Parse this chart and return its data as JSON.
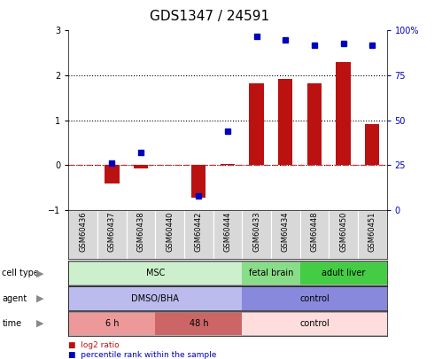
{
  "title": "GDS1347 / 24591",
  "samples": [
    "GSM60436",
    "GSM60437",
    "GSM60438",
    "GSM60440",
    "GSM60442",
    "GSM60444",
    "GSM60433",
    "GSM60434",
    "GSM60448",
    "GSM60450",
    "GSM60451"
  ],
  "log2_ratio": [
    0.0,
    -0.4,
    -0.07,
    0.0,
    -0.72,
    0.02,
    1.82,
    1.93,
    1.82,
    2.3,
    0.92
  ],
  "percentile_rank_pct": [
    null,
    26,
    32,
    null,
    8,
    44,
    97,
    95,
    92,
    93,
    92
  ],
  "ylim_left": [
    -1,
    3
  ],
  "ylim_right": [
    0,
    100
  ],
  "bar_color": "#bb1111",
  "dot_color": "#0000bb",
  "zero_line_color": "#cc3333",
  "cell_type_groups": [
    {
      "label": "MSC",
      "start": 0,
      "end": 5,
      "color": "#ccf0cc"
    },
    {
      "label": "fetal brain",
      "start": 6,
      "end": 7,
      "color": "#88dd88"
    },
    {
      "label": "adult liver",
      "start": 8,
      "end": 10,
      "color": "#44cc44"
    }
  ],
  "agent_groups": [
    {
      "label": "DMSO/BHA",
      "start": 0,
      "end": 5,
      "color": "#bbbbee"
    },
    {
      "label": "control",
      "start": 6,
      "end": 10,
      "color": "#8888dd"
    }
  ],
  "time_groups": [
    {
      "label": "6 h",
      "start": 0,
      "end": 2,
      "color": "#ee9999"
    },
    {
      "label": "48 h",
      "start": 3,
      "end": 5,
      "color": "#cc6666"
    },
    {
      "label": "control",
      "start": 6,
      "end": 10,
      "color": "#ffdddd"
    }
  ],
  "row_labels": [
    "cell type",
    "agent",
    "time"
  ],
  "legend_bar_color": "#bb1111",
  "legend_dot_color": "#0000bb",
  "legend_bar_label": "log2 ratio",
  "legend_dot_label": "percentile rank within the sample",
  "title_fontsize": 11,
  "tick_fontsize": 7,
  "label_fontsize": 7,
  "sample_fontsize": 6
}
